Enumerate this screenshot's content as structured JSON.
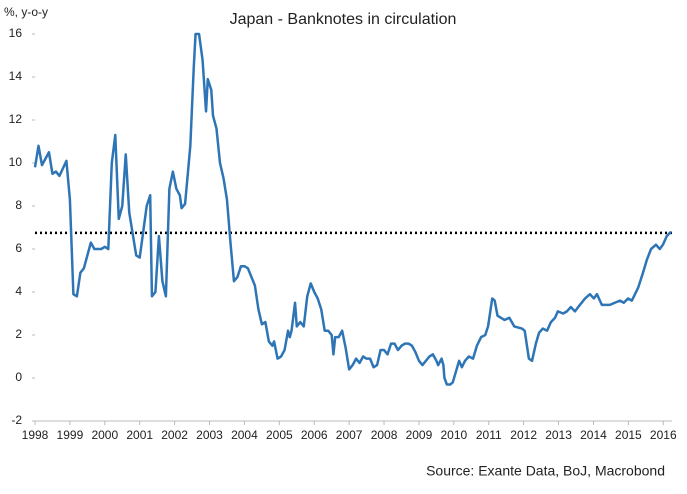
{
  "chart_data": {
    "type": "line",
    "title": "Japan - Banknotes in circulation",
    "y_label": "%, y-o-y",
    "source": "Source: Exante Data, BoJ, Macrobond",
    "xlim": [
      1998,
      2016.25
    ],
    "xticks": [
      1998,
      1999,
      2000,
      2001,
      2002,
      2003,
      2004,
      2005,
      2006,
      2007,
      2008,
      2009,
      2010,
      2011,
      2012,
      2013,
      2014,
      2015,
      2016
    ],
    "ylim": [
      -2,
      16
    ],
    "yticks": [
      -2,
      0,
      2,
      4,
      6,
      8,
      10,
      12,
      14,
      16
    ],
    "hline": 6.75,
    "hline_color": "#000000",
    "series": [
      {
        "color": "#2e75b6",
        "x": [
          1998.0,
          1998.1,
          1998.2,
          1998.4,
          1998.5,
          1998.6,
          1998.7,
          1998.9,
          1999.0,
          1999.1,
          1999.2,
          1999.3,
          1999.4,
          1999.6,
          1999.7,
          1999.9,
          2000.0,
          2000.1,
          2000.2,
          2000.3,
          2000.4,
          2000.5,
          2000.6,
          2000.7,
          2000.9,
          2001.0,
          2001.1,
          2001.2,
          2001.3,
          2001.35,
          2001.45,
          2001.55,
          2001.65,
          2001.75,
          2001.85,
          2001.95,
          2002.05,
          2002.15,
          2002.2,
          2002.3,
          2002.45,
          2002.55,
          2002.6,
          2002.7,
          2002.8,
          2002.9,
          2002.95,
          2003.05,
          2003.1,
          2003.2,
          2003.3,
          2003.4,
          2003.5,
          2003.6,
          2003.7,
          2003.8,
          2003.9,
          2004.0,
          2004.1,
          2004.2,
          2004.3,
          2004.4,
          2004.5,
          2004.6,
          2004.7,
          2004.8,
          2004.85,
          2004.95,
          2005.05,
          2005.15,
          2005.25,
          2005.3,
          2005.35,
          2005.45,
          2005.5,
          2005.6,
          2005.7,
          2005.8,
          2005.9,
          2006.0,
          2006.1,
          2006.2,
          2006.3,
          2006.4,
          2006.5,
          2006.55,
          2006.6,
          2006.7,
          2006.8,
          2006.9,
          2007.0,
          2007.1,
          2007.2,
          2007.3,
          2007.4,
          2007.5,
          2007.6,
          2007.7,
          2007.8,
          2007.9,
          2008.0,
          2008.1,
          2008.2,
          2008.3,
          2008.4,
          2008.5,
          2008.6,
          2008.7,
          2008.8,
          2008.9,
          2009.0,
          2009.1,
          2009.2,
          2009.3,
          2009.4,
          2009.5,
          2009.55,
          2009.65,
          2009.7,
          2009.73,
          2009.8,
          2009.9,
          2009.97,
          2010.06,
          2010.15,
          2010.23,
          2010.32,
          2010.43,
          2010.55,
          2010.66,
          2010.78,
          2010.9,
          2010.98,
          2011.1,
          2011.17,
          2011.25,
          2011.45,
          2011.59,
          2011.73,
          2011.95,
          2012.03,
          2012.15,
          2012.24,
          2012.35,
          2012.44,
          2012.55,
          2012.67,
          2012.78,
          2012.9,
          2012.98,
          2013.13,
          2013.24,
          2013.35,
          2013.47,
          2013.61,
          2013.76,
          2013.9,
          2014.01,
          2014.1,
          2014.24,
          2014.47,
          2014.61,
          2014.76,
          2014.87,
          2014.99,
          2015.1,
          2015.28,
          2015.42,
          2015.53,
          2015.65,
          2015.79,
          2015.9,
          2015.99,
          2016.1,
          2016.22
        ],
        "values": [
          9.8,
          10.8,
          9.9,
          10.5,
          9.5,
          9.6,
          9.4,
          10.1,
          8.3,
          3.9,
          3.8,
          4.9,
          5.1,
          6.3,
          6.0,
          6.0,
          6.1,
          6.0,
          10.0,
          11.3,
          7.4,
          8.0,
          10.4,
          7.7,
          5.7,
          5.6,
          6.8,
          8.0,
          8.5,
          3.8,
          4.0,
          6.6,
          4.5,
          3.8,
          8.8,
          9.6,
          8.8,
          8.5,
          7.9,
          8.1,
          10.8,
          14.5,
          16.0,
          16.0,
          14.8,
          12.4,
          13.9,
          13.4,
          12.2,
          11.6,
          10.0,
          9.3,
          8.3,
          6.3,
          4.5,
          4.7,
          5.2,
          5.2,
          5.1,
          4.7,
          4.3,
          3.2,
          2.5,
          2.6,
          1.7,
          1.5,
          1.7,
          0.9,
          1.0,
          1.3,
          2.2,
          1.9,
          2.2,
          3.5,
          2.4,
          2.6,
          2.4,
          3.8,
          4.4,
          4.0,
          3.7,
          3.2,
          2.2,
          2.2,
          2.0,
          1.1,
          1.9,
          1.9,
          2.2,
          1.4,
          0.4,
          0.6,
          0.9,
          0.7,
          1.0,
          0.9,
          0.9,
          0.5,
          0.6,
          1.3,
          1.3,
          1.1,
          1.6,
          1.6,
          1.3,
          1.5,
          1.6,
          1.6,
          1.5,
          1.2,
          0.8,
          0.6,
          0.8,
          1.0,
          1.1,
          0.8,
          0.6,
          0.9,
          0.6,
          0.0,
          -0.3,
          -0.3,
          -0.2,
          0.3,
          0.8,
          0.5,
          0.8,
          1.0,
          0.9,
          1.5,
          1.9,
          2.0,
          2.4,
          3.7,
          3.6,
          2.9,
          2.7,
          2.8,
          2.4,
          2.3,
          2.2,
          0.9,
          0.8,
          1.6,
          2.1,
          2.3,
          2.2,
          2.6,
          2.8,
          3.1,
          3.0,
          3.1,
          3.3,
          3.1,
          3.4,
          3.7,
          3.9,
          3.7,
          3.9,
          3.4,
          3.4,
          3.5,
          3.6,
          3.5,
          3.7,
          3.6,
          4.2,
          4.9,
          5.5,
          6.0,
          6.2,
          6.0,
          6.2,
          6.6,
          6.8
        ]
      }
    ]
  }
}
